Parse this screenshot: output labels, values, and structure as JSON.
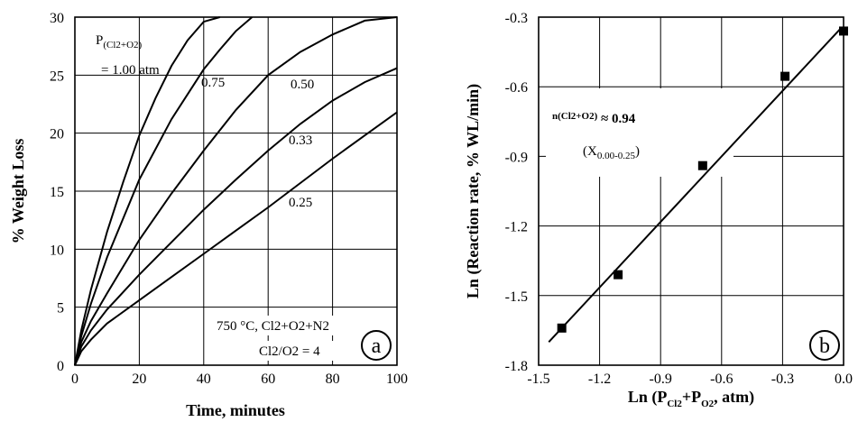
{
  "chart_data": [
    {
      "type": "line",
      "panel_label": "a",
      "xlabel": "Time, minutes",
      "ylabel": "% Weight Loss",
      "xlim": [
        0,
        100
      ],
      "ylim": [
        0,
        30
      ],
      "xticks": [
        "0",
        "20",
        "40",
        "60",
        "80",
        "100"
      ],
      "yticks": [
        "0",
        "5",
        "10",
        "15",
        "20",
        "25",
        "30"
      ],
      "grid": true,
      "annotations": {
        "pressure_label": "P",
        "pressure_sub": "(Cl2+O2)",
        "pressure_value": "= 1.00 atm",
        "condition_line1": "750 °C, Cl2+O2+N2",
        "condition_line2": "Cl2/O2 = 4"
      },
      "series": [
        {
          "name": "1.00",
          "x": [
            0,
            2,
            5,
            10,
            15,
            20,
            25,
            30,
            35,
            40,
            45
          ],
          "y": [
            0,
            3.0,
            6.5,
            11.5,
            15.8,
            19.8,
            23.0,
            25.8,
            28.0,
            29.6,
            30.0
          ]
        },
        {
          "name": "0.75",
          "x": [
            0,
            2,
            5,
            10,
            20,
            30,
            40,
            45,
            50,
            55
          ],
          "y": [
            0,
            2.5,
            5.3,
            9.3,
            16.0,
            21.2,
            25.5,
            27.2,
            28.8,
            30.0
          ]
        },
        {
          "name": "0.50",
          "x": [
            0,
            2,
            5,
            10,
            20,
            30,
            40,
            50,
            60,
            70,
            80,
            90,
            100
          ],
          "y": [
            0,
            2.0,
            3.8,
            6.2,
            10.8,
            14.8,
            18.5,
            22.0,
            25.0,
            27.0,
            28.5,
            29.7,
            30.0
          ]
        },
        {
          "name": "0.33",
          "x": [
            0,
            2,
            5,
            10,
            20,
            30,
            40,
            50,
            60,
            70,
            80,
            90,
            100
          ],
          "y": [
            0,
            1.6,
            3.0,
            4.8,
            7.8,
            10.6,
            13.4,
            16.0,
            18.5,
            20.8,
            22.8,
            24.4,
            25.6
          ]
        },
        {
          "name": "0.25",
          "x": [
            0,
            2,
            5,
            10,
            20,
            30,
            40,
            50,
            60,
            70,
            80,
            90,
            100
          ],
          "y": [
            0,
            1.2,
            2.2,
            3.6,
            5.6,
            7.6,
            9.6,
            11.6,
            13.6,
            15.7,
            17.8,
            19.8,
            21.8
          ]
        }
      ]
    },
    {
      "type": "scatter",
      "panel_label": "b",
      "xlabel_main": "Ln (P",
      "xlabel_sub1": "Cl2",
      "xlabel_mid": "+P",
      "xlabel_sub2": "O2",
      "xlabel_end": ", atm)",
      "ylabel": "Ln (Reaction rate,  % WL/min)",
      "xlim": [
        -1.5,
        0.0
      ],
      "ylim": [
        -1.8,
        -0.3
      ],
      "xticks": [
        "-1.5",
        "-1.2",
        "-0.9",
        "-0.6",
        "-0.3",
        "0.0"
      ],
      "yticks": [
        "-0.3",
        "-0.6",
        "-0.9",
        "-1.2",
        "-1.5",
        "-1.8"
      ],
      "grid": true,
      "annotations": {
        "n_main": "n",
        "n_sub": "(Cl2+O2)",
        "n_value": " ≈ 0.94",
        "x_main": "(X",
        "x_sub": "0.00-0.25",
        "x_end": ")"
      },
      "points": {
        "x": [
          -1.386,
          -1.109,
          -0.693,
          -0.288,
          0.0
        ],
        "y": [
          -1.64,
          -1.41,
          -0.94,
          -0.555,
          -0.36
        ]
      },
      "fit_line": {
        "x": [
          -1.45,
          -0.01
        ],
        "y": [
          -1.7,
          -0.345
        ]
      }
    }
  ]
}
